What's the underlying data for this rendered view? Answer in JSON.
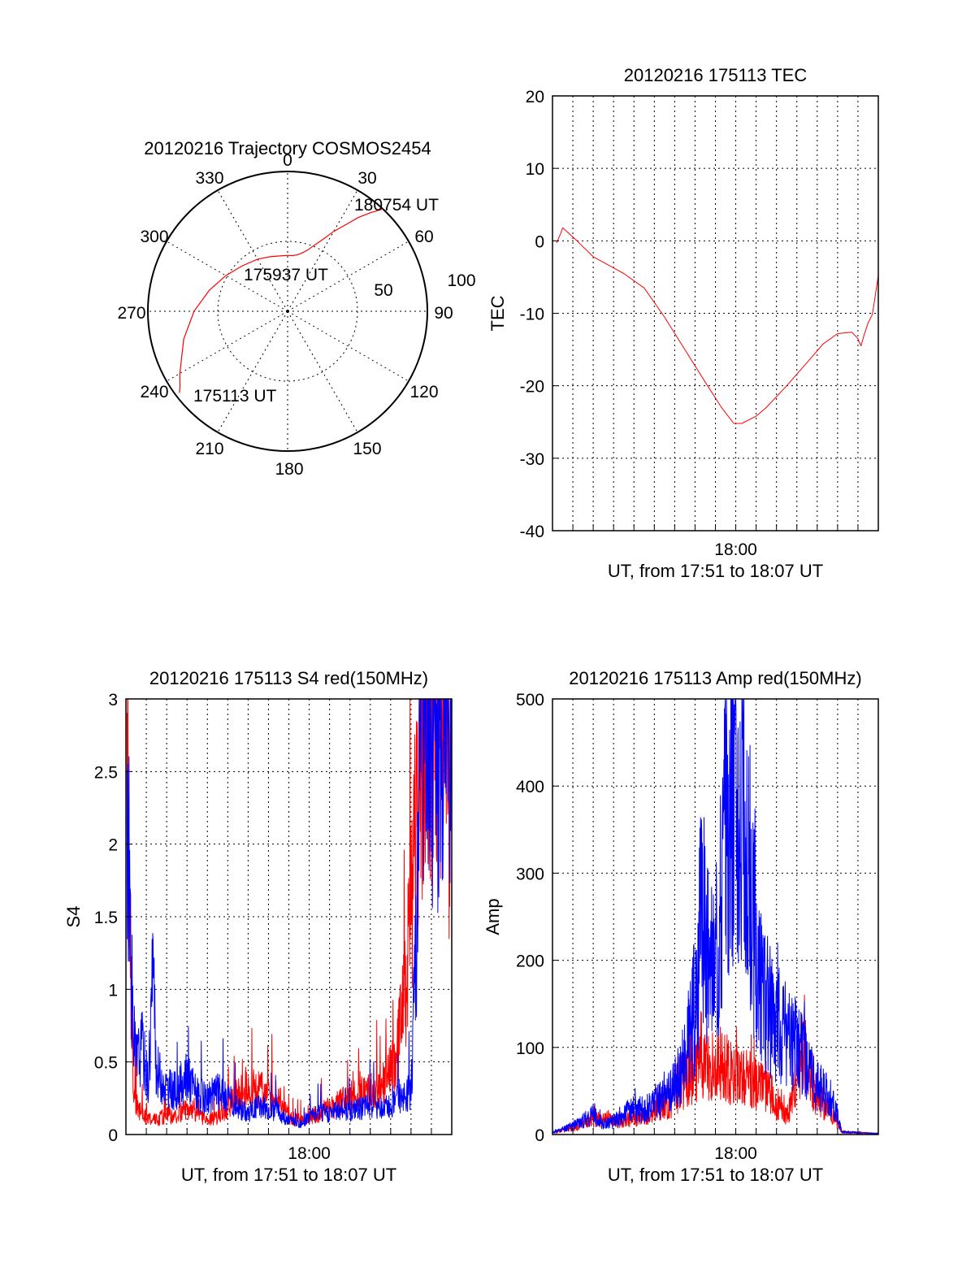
{
  "colors": {
    "red": "#ff0000",
    "blue": "#0000ff",
    "axis": "#000000"
  },
  "chart_data": [
    {
      "id": "trajectory",
      "type": "polar",
      "title": "20120216 Trajectory COSMOS2454",
      "azimuth_labels": [
        "0",
        "30",
        "60",
        "90",
        "120",
        "150",
        "180",
        "210",
        "240",
        "270",
        "300",
        "330"
      ],
      "radial_labels": [
        "50",
        "100"
      ],
      "rmax": 100,
      "series": [
        {
          "color": "red",
          "points": [
            [
              43,
              100
            ],
            [
              40,
              92
            ],
            [
              37,
              84
            ],
            [
              34,
              75
            ],
            [
              30,
              66
            ],
            [
              26,
              57
            ],
            [
              22,
              51
            ],
            [
              18,
              46
            ],
            [
              14,
              43
            ],
            [
              10,
              41
            ],
            [
              5,
              40
            ],
            [
              0,
              40
            ],
            [
              -8,
              40
            ],
            [
              -18,
              41
            ],
            [
              -30,
              43
            ],
            [
              -45,
              46
            ],
            [
              -60,
              51
            ],
            [
              -75,
              58
            ],
            [
              -90,
              67
            ],
            [
              -105,
              77
            ],
            [
              -115,
              84
            ],
            [
              -120,
              89
            ],
            [
              -125,
              94
            ],
            [
              -127,
              97
            ]
          ]
        }
      ],
      "annotations": [
        {
          "text": "180754 UT",
          "az": 43,
          "r": 100
        },
        {
          "text": "175937 UT",
          "az": 0,
          "r": 40
        },
        {
          "text": "175113 UT",
          "az": -127,
          "r": 97
        }
      ]
    },
    {
      "id": "tec",
      "type": "line",
      "title": "20120216 175113 TEC",
      "xlabel": "UT, from 17:51 to 18:07 UT",
      "ylabel": "TEC",
      "xlim": [
        0,
        16
      ],
      "ylim": [
        -40,
        20
      ],
      "yticks": [
        20,
        10,
        0,
        -10,
        -20,
        -30,
        -40
      ],
      "xticks": [
        {
          "x": 9,
          "label": "18:00"
        }
      ],
      "series": [
        {
          "color": "red",
          "points": [
            [
              0.2,
              -0.3
            ],
            [
              0.4,
              1.0
            ],
            [
              0.5,
              1.8
            ],
            [
              0.7,
              1.3
            ],
            [
              1.2,
              0.0
            ],
            [
              2.0,
              -2.2
            ],
            [
              3.5,
              -4.5
            ],
            [
              4.5,
              -6.5
            ],
            [
              5.5,
              -10.5
            ],
            [
              6.5,
              -15.0
            ],
            [
              7.5,
              -19.5
            ],
            [
              8.3,
              -23.0
            ],
            [
              8.9,
              -25.2
            ],
            [
              9.3,
              -25.2
            ],
            [
              10.0,
              -24.2
            ],
            [
              10.5,
              -23.0
            ],
            [
              11.5,
              -20.0
            ],
            [
              12.5,
              -16.8
            ],
            [
              13.3,
              -14.2
            ],
            [
              14.0,
              -12.8
            ],
            [
              14.7,
              -12.6
            ],
            [
              15.0,
              -13.5
            ],
            [
              15.15,
              -14.5
            ],
            [
              15.3,
              -13.0
            ],
            [
              15.5,
              -11.3
            ],
            [
              15.7,
              -10.2
            ],
            [
              15.8,
              -8.5
            ],
            [
              16.0,
              -4.8
            ]
          ]
        }
      ]
    },
    {
      "id": "s4",
      "type": "line",
      "title": "20120216 175113 S4 red(150MHz)",
      "xlabel": "UT, from 17:51 to 18:07 UT",
      "ylabel": "S4",
      "xlim": [
        0,
        16
      ],
      "ylim": [
        0,
        3
      ],
      "yticks": [
        "3",
        "2.5",
        "2",
        "1.5",
        "1",
        "0.5",
        "0"
      ],
      "xticks": [
        {
          "x": 9,
          "label": "18:00"
        }
      ],
      "series": [
        {
          "color": "red",
          "points": [
            [
              0.05,
              3.0
            ],
            [
              0.15,
              2.2
            ],
            [
              0.25,
              1.0
            ],
            [
              0.35,
              0.4
            ],
            [
              0.5,
              0.2
            ],
            [
              1,
              0.12
            ],
            [
              1.5,
              0.1
            ],
            [
              2,
              0.14
            ],
            [
              2.5,
              0.12
            ],
            [
              3,
              0.18
            ],
            [
              3.5,
              0.15
            ],
            [
              4,
              0.1
            ],
            [
              4.5,
              0.12
            ],
            [
              5,
              0.2
            ],
            [
              5.5,
              0.28
            ],
            [
              6,
              0.3
            ],
            [
              6.5,
              0.32
            ],
            [
              7,
              0.28
            ],
            [
              7.5,
              0.25
            ],
            [
              8,
              0.12
            ],
            [
              8.5,
              0.1
            ],
            [
              9,
              0.12
            ],
            [
              9.5,
              0.15
            ],
            [
              10,
              0.18
            ],
            [
              10.5,
              0.22
            ],
            [
              11,
              0.25
            ],
            [
              11.5,
              0.28
            ],
            [
              12,
              0.3
            ],
            [
              12.5,
              0.35
            ],
            [
              13,
              0.42
            ],
            [
              13.3,
              0.55
            ],
            [
              13.6,
              0.85
            ],
            [
              13.9,
              1.3
            ],
            [
              14.2,
              2.0
            ],
            [
              14.5,
              2.6
            ],
            [
              14.8,
              3.0
            ],
            [
              15.2,
              2.8
            ],
            [
              15.5,
              3.0
            ],
            [
              15.8,
              2.5
            ],
            [
              16,
              2.2
            ]
          ]
        },
        {
          "color": "blue",
          "points": [
            [
              0.05,
              2.5
            ],
            [
              0.15,
              1.8
            ],
            [
              0.25,
              1.2
            ],
            [
              0.35,
              0.7
            ],
            [
              0.5,
              0.5
            ],
            [
              0.8,
              0.6
            ],
            [
              1.1,
              0.35
            ],
            [
              1.3,
              1.1
            ],
            [
              1.5,
              0.45
            ],
            [
              2,
              0.32
            ],
            [
              2.5,
              0.3
            ],
            [
              3,
              0.4
            ],
            [
              3.5,
              0.28
            ],
            [
              4,
              0.25
            ],
            [
              4.5,
              0.3
            ],
            [
              5,
              0.25
            ],
            [
              5.5,
              0.18
            ],
            [
              6,
              0.15
            ],
            [
              6.5,
              0.2
            ],
            [
              7,
              0.18
            ],
            [
              7.5,
              0.15
            ],
            [
              8,
              0.1
            ],
            [
              8.5,
              0.08
            ],
            [
              9,
              0.12
            ],
            [
              9.5,
              0.15
            ],
            [
              10,
              0.15
            ],
            [
              10.5,
              0.18
            ],
            [
              11,
              0.16
            ],
            [
              11.5,
              0.18
            ],
            [
              12,
              0.2
            ],
            [
              12.5,
              0.18
            ],
            [
              13,
              0.2
            ],
            [
              13.5,
              0.25
            ],
            [
              14,
              0.3
            ],
            [
              14.3,
              1.5
            ],
            [
              14.5,
              2.5
            ],
            [
              14.8,
              3.0
            ],
            [
              15.2,
              2.6
            ],
            [
              15.5,
              3.0
            ],
            [
              15.8,
              2.8
            ],
            [
              16,
              2.9
            ]
          ]
        }
      ]
    },
    {
      "id": "amp",
      "type": "line",
      "title": "20120216 175113 Amp red(150MHz)",
      "xlabel": "UT, from 17:51 to 18:07 UT",
      "ylabel": "Amp",
      "xlim": [
        0,
        16
      ],
      "ylim": [
        0,
        500
      ],
      "yticks": [
        500,
        400,
        300,
        200,
        100,
        0
      ],
      "xticks": [
        {
          "x": 9,
          "label": "18:00"
        }
      ],
      "series": [
        {
          "color": "red",
          "points": [
            [
              0,
              2
            ],
            [
              1,
              8
            ],
            [
              2,
              18
            ],
            [
              3,
              15
            ],
            [
              4,
              20
            ],
            [
              4.5,
              18
            ],
            [
              5,
              28
            ],
            [
              5.5,
              35
            ],
            [
              6,
              45
            ],
            [
              6.5,
              60
            ],
            [
              7,
              75
            ],
            [
              7.5,
              85
            ],
            [
              8,
              80
            ],
            [
              8.5,
              75
            ],
            [
              9,
              70
            ],
            [
              9.5,
              65
            ],
            [
              10,
              60
            ],
            [
              10.5,
              55
            ],
            [
              11,
              35
            ],
            [
              11.5,
              20
            ],
            [
              12,
              60
            ],
            [
              12.3,
              100
            ],
            [
              12.5,
              80
            ],
            [
              13,
              45
            ],
            [
              13.5,
              30
            ],
            [
              14,
              15
            ],
            [
              14.2,
              3
            ],
            [
              16,
              1
            ]
          ]
        },
        {
          "color": "blue",
          "points": [
            [
              0,
              2
            ],
            [
              1,
              10
            ],
            [
              2,
              22
            ],
            [
              2.5,
              12
            ],
            [
              3,
              15
            ],
            [
              4,
              30
            ],
            [
              4.5,
              28
            ],
            [
              5,
              35
            ],
            [
              5.5,
              42
            ],
            [
              6,
              55
            ],
            [
              6.5,
              85
            ],
            [
              7,
              150
            ],
            [
              7.3,
              260
            ],
            [
              7.6,
              210
            ],
            [
              8,
              195
            ],
            [
              8.3,
              300
            ],
            [
              8.6,
              380
            ],
            [
              8.9,
              420
            ],
            [
              9.2,
              400
            ],
            [
              9.5,
              310
            ],
            [
              9.8,
              240
            ],
            [
              10.2,
              170
            ],
            [
              10.5,
              150
            ],
            [
              11,
              130
            ],
            [
              11.5,
              115
            ],
            [
              12,
              100
            ],
            [
              12.3,
              90
            ],
            [
              12.8,
              60
            ],
            [
              13.3,
              55
            ],
            [
              13.7,
              40
            ],
            [
              14.0,
              20
            ],
            [
              14.2,
              3
            ],
            [
              16,
              1
            ]
          ]
        }
      ]
    }
  ]
}
